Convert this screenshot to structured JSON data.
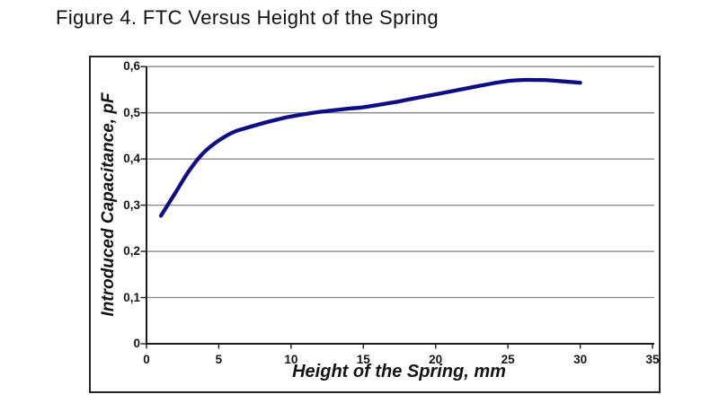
{
  "figure_title": "Figure 4. FTC Versus Height of the Spring",
  "chart_data": {
    "type": "line",
    "title": "Figure 4. FTC Versus Height of the Spring",
    "xlabel": "Height of the Spring, mm",
    "ylabel": "Introduced Capacitance, pF",
    "xlim": [
      0,
      35
    ],
    "ylim": [
      0,
      0.6
    ],
    "x_ticks": [
      0,
      5,
      10,
      15,
      20,
      25,
      30,
      35
    ],
    "x_tick_labels": [
      "0",
      "5",
      "10",
      "15",
      "20",
      "25",
      "30",
      "35"
    ],
    "y_ticks": [
      0,
      0.1,
      0.2,
      0.3,
      0.4,
      0.5,
      0.6
    ],
    "y_tick_labels": [
      "0",
      "0,1",
      "0,2",
      "0,3",
      "0,4",
      "0,5",
      "0,6"
    ],
    "decimal_separator": ",",
    "grid": "horizontal",
    "legend_position": "none",
    "series": [
      {
        "name": "FTC",
        "color": "#0d0d85",
        "points": [
          [
            1,
            0.277
          ],
          [
            2,
            0.327
          ],
          [
            3,
            0.377
          ],
          [
            4,
            0.415
          ],
          [
            5,
            0.44
          ],
          [
            6,
            0.458
          ],
          [
            7,
            0.468
          ],
          [
            8,
            0.477
          ],
          [
            9,
            0.485
          ],
          [
            10,
            0.492
          ],
          [
            12,
            0.502
          ],
          [
            14,
            0.509
          ],
          [
            15,
            0.512
          ],
          [
            17,
            0.522
          ],
          [
            18,
            0.528
          ],
          [
            20,
            0.54
          ],
          [
            22,
            0.552
          ],
          [
            24,
            0.564
          ],
          [
            25,
            0.569
          ],
          [
            26,
            0.571
          ],
          [
            27,
            0.571
          ],
          [
            28,
            0.57
          ],
          [
            30,
            0.565
          ]
        ]
      }
    ]
  },
  "colors": {
    "background": "#ffffff",
    "chart_border": "#262626",
    "gridline": "#868686",
    "axis": "#1c1c1c",
    "line": "#0d0d85",
    "text": "#121212"
  }
}
